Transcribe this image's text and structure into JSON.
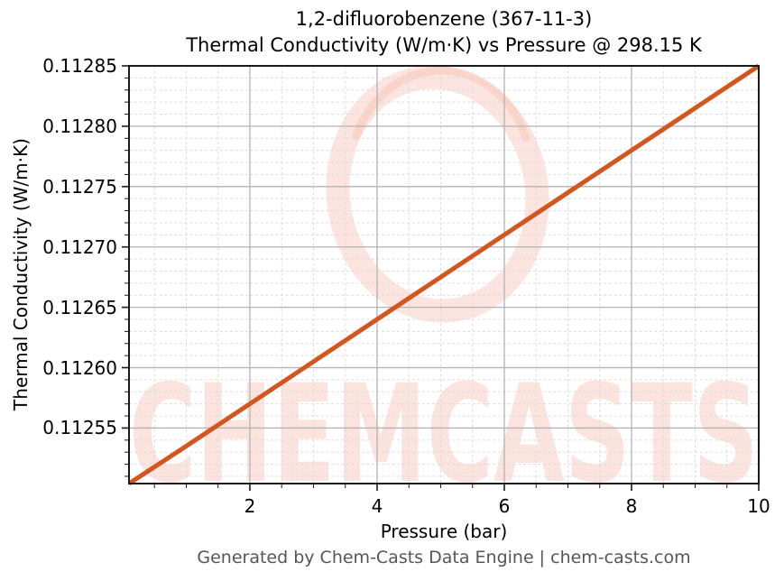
{
  "title": {
    "line1": "1,2-difluorobenzene (367-11-3)",
    "line2": "Thermal Conductivity (W/m·K) vs Pressure @ 298.15 K"
  },
  "axes": {
    "xlabel": "Pressure (bar)",
    "ylabel": "Thermal Conductivity (W/m·K)"
  },
  "footer": {
    "text": "Generated by Chem-Casts Data Engine | chem-casts.com"
  },
  "watermark": {
    "text": "CHEMCASTS",
    "color": "#ec6040",
    "text_opacity": 0.17,
    "ring_opacity": 0.16
  },
  "colors": {
    "line": "#d2561e",
    "spine": "#1a1a1a",
    "grid_major": "#b3b3b3",
    "grid_minor": "#dcdcdc",
    "footer_text": "#565656"
  },
  "chart_data": {
    "type": "line",
    "title": "1,2-difluorobenzene (367-11-3) Thermal Conductivity (W/m·K) vs Pressure @ 298.15 K",
    "xlabel": "Pressure (bar)",
    "ylabel": "Thermal Conductivity (W/m·K)",
    "xlim": [
      0.1,
      10
    ],
    "ylim": [
      0.112504,
      0.11285
    ],
    "x_major_ticks": [
      2,
      4,
      6,
      8,
      10
    ],
    "x_major_tick_labels": [
      "2",
      "4",
      "6",
      "8",
      "10"
    ],
    "x_minor_step": 0.5,
    "y_major_ticks": [
      0.11255,
      0.1126,
      0.11265,
      0.1127,
      0.11275,
      0.1128,
      0.11285
    ],
    "y_major_tick_labels": [
      "0.11255",
      "0.11260",
      "0.11265",
      "0.11270",
      "0.11275",
      "0.11280",
      "0.11285"
    ],
    "y_minor_step": 1e-05,
    "grid": {
      "major": "solid",
      "minor": "dashed"
    },
    "legend": "none",
    "series": [
      {
        "name": "Thermal Conductivity",
        "color": "#d2561e",
        "x": [
          0.1,
          1,
          2,
          3,
          4,
          5,
          6,
          7,
          8,
          9,
          10
        ],
        "y": [
          0.112504,
          0.112535,
          0.11257,
          0.112605,
          0.11264,
          0.112675,
          0.11271,
          0.112745,
          0.11278,
          0.112815,
          0.11285
        ]
      }
    ]
  }
}
